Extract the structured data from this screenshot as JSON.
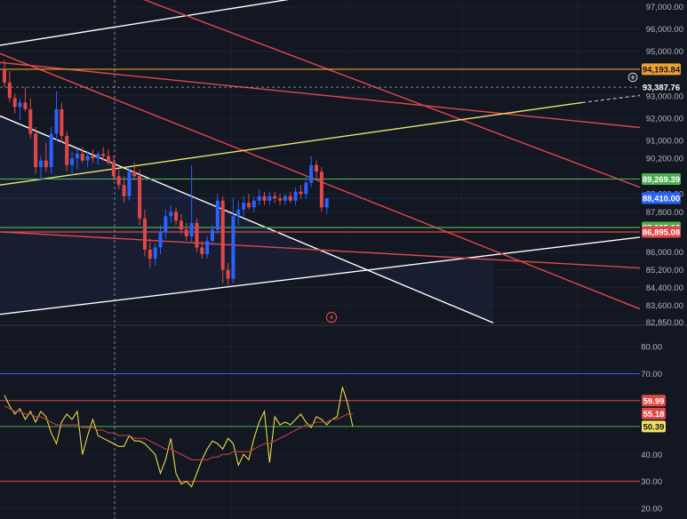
{
  "chart_data": [
    {
      "type": "candlestick",
      "name_in_image": "",
      "y_axis_ticks": [
        "97,000.00",
        "96,000.00",
        "95,000.00",
        "93,000.00",
        "92,000.00",
        "91,000.00",
        "90,200.00",
        "88,600.00",
        "87,800.00",
        "86,000.00",
        "85,200.00",
        "84,400.00",
        "83,600.00",
        "82,850.00"
      ],
      "ylim": [
        82750,
        97300
      ],
      "grid": true,
      "candles": [
        {
          "o": 94200,
          "h": 94600,
          "l": 93400,
          "c": 93600
        },
        {
          "o": 93600,
          "h": 94100,
          "l": 92700,
          "c": 92900
        },
        {
          "o": 92900,
          "h": 93100,
          "l": 92200,
          "c": 92500
        },
        {
          "o": 92500,
          "h": 92900,
          "l": 91900,
          "c": 92700
        },
        {
          "o": 92700,
          "h": 93400,
          "l": 92300,
          "c": 92400
        },
        {
          "o": 92400,
          "h": 92900,
          "l": 91100,
          "c": 91300
        },
        {
          "o": 91300,
          "h": 91600,
          "l": 89500,
          "c": 89800
        },
        {
          "o": 89800,
          "h": 90300,
          "l": 89300,
          "c": 90100
        },
        {
          "o": 90100,
          "h": 90900,
          "l": 89600,
          "c": 89800
        },
        {
          "o": 89800,
          "h": 91600,
          "l": 89500,
          "c": 91300
        },
        {
          "o": 91300,
          "h": 93200,
          "l": 91000,
          "c": 92400
        },
        {
          "o": 92400,
          "h": 92700,
          "l": 90900,
          "c": 91200
        },
        {
          "o": 91200,
          "h": 91400,
          "l": 89600,
          "c": 89900
        },
        {
          "o": 89900,
          "h": 90500,
          "l": 89400,
          "c": 90200
        },
        {
          "o": 90200,
          "h": 90600,
          "l": 89700,
          "c": 90400
        },
        {
          "o": 90400,
          "h": 90700,
          "l": 90000,
          "c": 90100
        },
        {
          "o": 90100,
          "h": 90500,
          "l": 89800,
          "c": 90300
        },
        {
          "o": 90300,
          "h": 90600,
          "l": 90000,
          "c": 90200
        },
        {
          "o": 90200,
          "h": 90500,
          "l": 89900,
          "c": 90400
        },
        {
          "o": 90400,
          "h": 90700,
          "l": 90100,
          "c": 90300
        },
        {
          "o": 90300,
          "h": 90600,
          "l": 89900,
          "c": 90000
        },
        {
          "o": 90000,
          "h": 90300,
          "l": 89200,
          "c": 89400
        },
        {
          "o": 89400,
          "h": 89700,
          "l": 88800,
          "c": 89000
        },
        {
          "o": 89000,
          "h": 89400,
          "l": 88200,
          "c": 88500
        },
        {
          "o": 88500,
          "h": 89800,
          "l": 88300,
          "c": 89600
        },
        {
          "o": 89600,
          "h": 90000,
          "l": 89200,
          "c": 89400
        },
        {
          "o": 89400,
          "h": 89700,
          "l": 87200,
          "c": 87500
        },
        {
          "o": 87500,
          "h": 87900,
          "l": 85800,
          "c": 86100
        },
        {
          "o": 86100,
          "h": 86600,
          "l": 85300,
          "c": 85700
        },
        {
          "o": 85700,
          "h": 86400,
          "l": 85400,
          "c": 86200
        },
        {
          "o": 86200,
          "h": 87200,
          "l": 85900,
          "c": 86900
        },
        {
          "o": 86900,
          "h": 87900,
          "l": 86600,
          "c": 87600
        },
        {
          "o": 87600,
          "h": 88100,
          "l": 87300,
          "c": 87800
        },
        {
          "o": 87800,
          "h": 88000,
          "l": 87200,
          "c": 87400
        },
        {
          "o": 87400,
          "h": 87700,
          "l": 86800,
          "c": 87000
        },
        {
          "o": 87000,
          "h": 87300,
          "l": 86500,
          "c": 86700
        },
        {
          "o": 86700,
          "h": 89900,
          "l": 86400,
          "c": 87300
        },
        {
          "o": 87300,
          "h": 87500,
          "l": 86000,
          "c": 86200
        },
        {
          "o": 86200,
          "h": 86500,
          "l": 85700,
          "c": 85900
        },
        {
          "o": 85900,
          "h": 86700,
          "l": 85700,
          "c": 86500
        },
        {
          "o": 86500,
          "h": 87200,
          "l": 86300,
          "c": 87000
        },
        {
          "o": 87000,
          "h": 88600,
          "l": 86800,
          "c": 88300
        },
        {
          "o": 88300,
          "h": 88500,
          "l": 84600,
          "c": 85200
        },
        {
          "o": 85200,
          "h": 85500,
          "l": 84500,
          "c": 84800
        },
        {
          "o": 84800,
          "h": 88400,
          "l": 84600,
          "c": 87600
        },
        {
          "o": 87600,
          "h": 88300,
          "l": 87200,
          "c": 87900
        },
        {
          "o": 87900,
          "h": 88500,
          "l": 87600,
          "c": 88200
        },
        {
          "o": 88200,
          "h": 88600,
          "l": 87900,
          "c": 88000
        },
        {
          "o": 88000,
          "h": 88500,
          "l": 87800,
          "c": 88300
        },
        {
          "o": 88300,
          "h": 88800,
          "l": 88100,
          "c": 88500
        },
        {
          "o": 88500,
          "h": 88700,
          "l": 88100,
          "c": 88300
        },
        {
          "o": 88300,
          "h": 88700,
          "l": 88100,
          "c": 88500
        },
        {
          "o": 88500,
          "h": 88700,
          "l": 88200,
          "c": 88400
        },
        {
          "o": 88400,
          "h": 88600,
          "l": 88100,
          "c": 88300
        },
        {
          "o": 88300,
          "h": 88600,
          "l": 88100,
          "c": 88500
        },
        {
          "o": 88500,
          "h": 88700,
          "l": 88200,
          "c": 88300
        },
        {
          "o": 88300,
          "h": 88900,
          "l": 88100,
          "c": 88700
        },
        {
          "o": 88700,
          "h": 89000,
          "l": 88400,
          "c": 88600
        },
        {
          "o": 88600,
          "h": 89400,
          "l": 88400,
          "c": 89100
        },
        {
          "o": 89100,
          "h": 90300,
          "l": 88900,
          "c": 89900
        },
        {
          "o": 89900,
          "h": 90100,
          "l": 89200,
          "c": 89600
        },
        {
          "o": 89600,
          "h": 89800,
          "l": 87800,
          "c": 88000
        },
        {
          "o": 88000,
          "h": 88400,
          "l": 87700,
          "c": 88410
        }
      ],
      "horizontal_levels": [
        {
          "price": 94193.84,
          "label": "94,193.84",
          "color": "#f0a030",
          "text_color": "#131722"
        },
        {
          "price": 93387.76,
          "label": "93,387.76",
          "color": "#ffffff",
          "text_color": "#ffffff",
          "style": "dashed"
        },
        {
          "price": 89269.39,
          "label": "89,269.39",
          "color": "#4caf50",
          "text_color": "#ffffff"
        },
        {
          "price": 88410.0,
          "label": "88,410.00",
          "color": "#2962ff",
          "text_color": "#ffffff",
          "style": "dotted"
        },
        {
          "price": 87095.06,
          "label": "87,095.06",
          "color": "#4caf50",
          "text_color": "#ffffff"
        },
        {
          "price": 86895.08,
          "label": "86,895.08",
          "color": "#e04848",
          "text_color": "#ffffff"
        }
      ],
      "trendlines": [
        {
          "color": "#ffffff",
          "p1": [
            0,
            95270
          ],
          "p2": [
            400,
            97800
          ]
        },
        {
          "color": "#ffffff",
          "p1": [
            0,
            92100
          ],
          "p2": [
            555,
            82820
          ]
        },
        {
          "color": "#ffffff",
          "p1": [
            0,
            83200
          ],
          "p2": [
            720,
            86660
          ]
        },
        {
          "color": "#e04848",
          "p1": [
            130,
            97800
          ],
          "p2": [
            720,
            88900
          ]
        },
        {
          "color": "#e04848",
          "p1": [
            0,
            94900
          ],
          "p2": [
            720,
            83440
          ]
        },
        {
          "color": "#e04848",
          "p1": [
            0,
            94500
          ],
          "p2": [
            720,
            91580
          ]
        },
        {
          "color": "#e04848",
          "p1": [
            0,
            86900
          ],
          "p2": [
            720,
            85280
          ]
        },
        {
          "color": "#e8e870",
          "p1": [
            0,
            89000
          ],
          "p2": [
            655,
            92700
          ]
        },
        {
          "color": "#9ea3ad",
          "p1": [
            655,
            92700
          ],
          "p2": [
            720,
            93020
          ],
          "style": "dashed"
        }
      ],
      "icons": [
        "crosshair-plus-icon",
        "lightning-icon"
      ]
    },
    {
      "type": "line",
      "indicator": "oscillator",
      "y_axis_ticks": [
        "80.00",
        "70.00",
        "40.00",
        "30.00",
        "20.00"
      ],
      "ylim": [
        16,
        88
      ],
      "levels": [
        {
          "value": 70,
          "color": "#2962ff"
        },
        {
          "value": 59.99,
          "label": "59.99",
          "color": "#e04848"
        },
        {
          "value": 50.39,
          "label": "",
          "color": "#4caf50"
        },
        {
          "value": 30,
          "color": "#e04848"
        }
      ],
      "value_badges": [
        {
          "value": 59.99,
          "label": "59.99",
          "color": "#e04848",
          "text_color": "#ffffff"
        },
        {
          "value": 55.18,
          "label": "55.18",
          "color": "#e04848",
          "text_color": "#ffffff"
        },
        {
          "value": 50.39,
          "label": "50.39",
          "color": "#f0e060",
          "text_color": "#131722"
        }
      ],
      "series": [
        {
          "color": "#e8d84a",
          "values": [
            62,
            58,
            55,
            57,
            53,
            56,
            52,
            56,
            54,
            48,
            44,
            52,
            55,
            53,
            56,
            40,
            47,
            53,
            47,
            46,
            45,
            44,
            43,
            43,
            47,
            45,
            45,
            44,
            42,
            40,
            33,
            38,
            46,
            33,
            29,
            30,
            28,
            33,
            38,
            42,
            45,
            44,
            42,
            46,
            44,
            36,
            40,
            38,
            46,
            52,
            56,
            37,
            54,
            51,
            52,
            51,
            53,
            55,
            52,
            50,
            54,
            53,
            51,
            53,
            54,
            65,
            59,
            50.39
          ]
        },
        {
          "color": "#c04040",
          "values": [
            58,
            57,
            56,
            56,
            55,
            55,
            54,
            54,
            53,
            52,
            51,
            51,
            51,
            51,
            51,
            50,
            50,
            50,
            49,
            49,
            48,
            48,
            47,
            47,
            47,
            46,
            46,
            46,
            45,
            44,
            43,
            42,
            42,
            41,
            40,
            39,
            38,
            38,
            38,
            38,
            39,
            39,
            40,
            40,
            41,
            41,
            41,
            41,
            42,
            43,
            44,
            44,
            45,
            46,
            47,
            48,
            49,
            50,
            51,
            51,
            52,
            52,
            52,
            53,
            53,
            54,
            55,
            55.18
          ]
        }
      ]
    }
  ]
}
